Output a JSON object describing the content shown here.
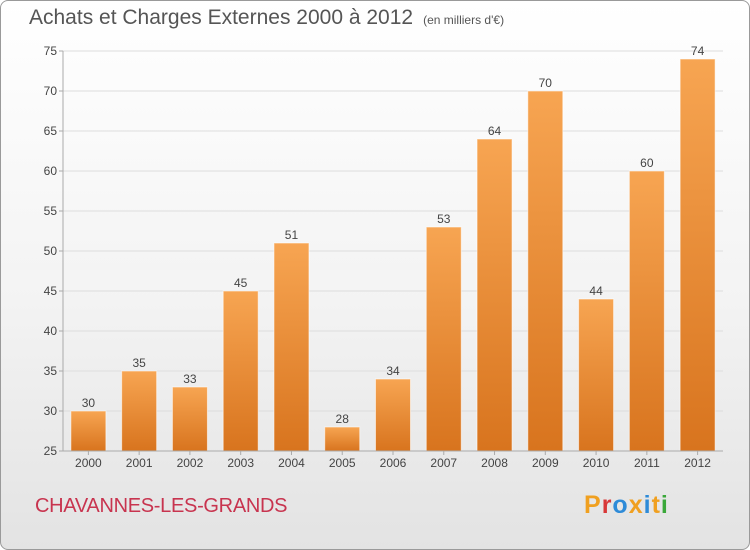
{
  "chart_data": {
    "type": "bar",
    "title": "Achats et Charges Externes 2000 à 2012",
    "subtitle": "(en milliers d'€)",
    "categories": [
      "2000",
      "2001",
      "2002",
      "2003",
      "2004",
      "2005",
      "2006",
      "2007",
      "2008",
      "2009",
      "2010",
      "2011",
      "2012"
    ],
    "values": [
      30,
      35,
      33,
      45,
      51,
      28,
      34,
      53,
      64,
      70,
      44,
      60,
      74
    ],
    "ylim": [
      25,
      75
    ],
    "yticks": [
      25,
      30,
      35,
      40,
      45,
      50,
      55,
      60,
      65,
      70,
      75
    ],
    "xlabel": "",
    "ylabel": "",
    "grid": true,
    "data_labels": true
  },
  "footer": {
    "commune": "CHAVANNES-LES-GRANDS",
    "logo": "Proxiti"
  },
  "colors": {
    "bar_light": "#f7a552",
    "bar_dark": "#d8741e",
    "title": "#555555",
    "commune": "#c8344f",
    "grid": "#dddddd",
    "axis": "#aaaaaa",
    "logo_letters": [
      "#f0a020",
      "#d83838",
      "#2e8bd8",
      "#f0a020",
      "#2e8bd8",
      "#f0a020",
      "#3aa83a"
    ]
  }
}
